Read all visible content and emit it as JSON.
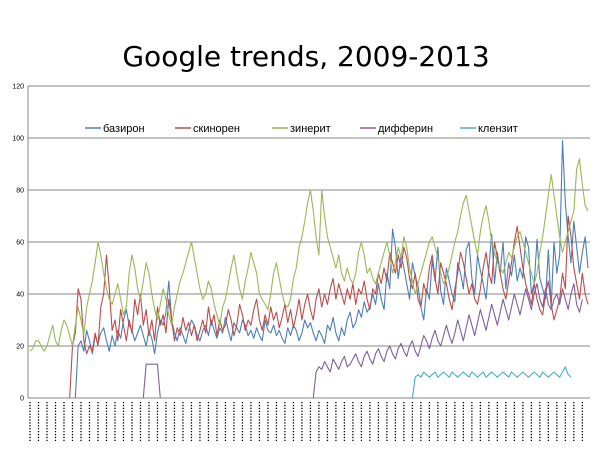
{
  "chart_data": {
    "type": "line",
    "title": "Google trends, 2009-2013",
    "xlabel": "",
    "ylabel": "",
    "ylim": [
      0,
      120
    ],
    "yticks": [
      "0",
      "20",
      "40",
      "60",
      "80",
      "100",
      "120"
    ],
    "grid": true,
    "legend_position": "top",
    "series": [
      {
        "name": "базирон",
        "color": "#4A7EBB",
        "values": [
          0,
          0,
          0,
          0,
          0,
          0,
          0,
          0,
          0,
          0,
          0,
          0,
          0,
          0,
          0,
          0,
          0,
          20,
          22,
          18,
          26,
          22,
          17,
          24,
          21,
          25,
          27,
          22,
          18,
          24,
          20,
          26,
          23,
          30,
          34,
          28,
          26,
          22,
          25,
          28,
          24,
          20,
          26,
          23,
          17,
          25,
          30,
          28,
          33,
          45,
          30,
          25,
          22,
          27,
          24,
          21,
          26,
          30,
          28,
          24,
          22,
          26,
          28,
          24,
          30,
          26,
          23,
          27,
          25,
          31,
          26,
          22,
          29,
          27,
          25,
          30,
          28,
          24,
          26,
          23,
          27,
          24,
          22,
          30,
          26,
          25,
          28,
          24,
          26,
          23,
          21,
          27,
          24,
          28,
          26,
          22,
          25,
          30,
          27,
          29,
          25,
          22,
          26,
          24,
          21,
          28,
          26,
          31,
          25,
          22,
          27,
          24,
          30,
          33,
          27,
          29,
          34,
          31,
          37,
          33,
          35,
          40,
          36,
          44,
          38,
          34,
          48,
          42,
          65,
          58,
          46,
          55,
          50,
          44,
          38,
          52,
          47,
          43,
          35,
          30,
          42,
          38,
          53,
          45,
          58,
          41,
          36,
          50,
          45,
          40,
          37,
          52,
          48,
          42,
          57,
          60,
          46,
          40,
          55,
          49,
          44,
          38,
          50,
          63,
          44,
          56,
          48,
          60,
          42,
          52,
          47,
          55,
          45,
          50,
          46,
          62,
          58,
          40,
          44,
          61,
          46,
          42,
          38,
          57,
          35,
          60,
          48,
          55,
          99,
          75,
          62,
          52,
          68,
          58,
          48,
          56,
          62,
          50
        ]
      },
      {
        "name": "скинорен",
        "color": "#BE4B48",
        "values": [
          0,
          0,
          0,
          0,
          0,
          0,
          0,
          0,
          0,
          0,
          0,
          0,
          0,
          0,
          0,
          20,
          25,
          42,
          38,
          22,
          17,
          20,
          18,
          25,
          20,
          35,
          40,
          55,
          42,
          26,
          30,
          22,
          34,
          28,
          22,
          30,
          25,
          38,
          32,
          40,
          28,
          34,
          24,
          30,
          22,
          35,
          28,
          32,
          25,
          38,
          30,
          22,
          27,
          24,
          31,
          26,
          29,
          24,
          28,
          22,
          26,
          30,
          25,
          35,
          28,
          32,
          24,
          30,
          26,
          28,
          34,
          30,
          24,
          28,
          36,
          32,
          26,
          30,
          28,
          34,
          38,
          30,
          26,
          32,
          28,
          35,
          30,
          33,
          27,
          31,
          36,
          29,
          34,
          27,
          32,
          38,
          30,
          36,
          40,
          34,
          30,
          38,
          42,
          35,
          40,
          36,
          42,
          46,
          38,
          44,
          40,
          36,
          42,
          38,
          44,
          36,
          42,
          40,
          45,
          38,
          34,
          42,
          40,
          48,
          44,
          50,
          45,
          56,
          52,
          48,
          55,
          50,
          58,
          54,
          46,
          42,
          48,
          38,
          35,
          44,
          40,
          50,
          55,
          46,
          40,
          52,
          48,
          44,
          38,
          34,
          42,
          48,
          56,
          52,
          46,
          40,
          44,
          38,
          36,
          42,
          50,
          56,
          48,
          44,
          60,
          54,
          48,
          42,
          38,
          45,
          52,
          60,
          66,
          58,
          50,
          44,
          40,
          36,
          44,
          38,
          34,
          32,
          40,
          45,
          36,
          30,
          34,
          38,
          48,
          42,
          70,
          62,
          50,
          44,
          38,
          48,
          40,
          36
        ]
      },
      {
        "name": "зинерит",
        "color": "#98B954",
        "values": [
          18,
          19,
          22,
          22,
          20,
          18,
          20,
          24,
          28,
          22,
          20,
          26,
          30,
          28,
          24,
          20,
          28,
          35,
          30,
          24,
          35,
          40,
          45,
          52,
          60,
          55,
          48,
          42,
          38,
          36,
          40,
          44,
          38,
          32,
          35,
          48,
          55,
          50,
          42,
          38,
          45,
          52,
          48,
          40,
          34,
          30,
          36,
          42,
          38,
          32,
          28,
          35,
          40,
          45,
          48,
          52,
          56,
          60,
          54,
          48,
          42,
          38,
          40,
          45,
          42,
          36,
          32,
          28,
          35,
          38,
          44,
          50,
          55,
          48,
          42,
          38,
          45,
          50,
          56,
          52,
          48,
          40,
          38,
          36,
          34,
          40,
          48,
          52,
          46,
          40,
          36,
          35,
          38,
          46,
          50,
          58,
          62,
          68,
          75,
          80,
          72,
          62,
          55,
          80,
          70,
          62,
          58,
          54,
          50,
          55,
          48,
          45,
          50,
          46,
          44,
          48,
          56,
          60,
          55,
          48,
          50,
          46,
          44,
          48,
          52,
          56,
          60,
          55,
          48,
          52,
          58,
          54,
          62,
          58,
          50,
          45,
          40,
          44,
          48,
          52,
          56,
          60,
          62,
          58,
          54,
          48,
          44,
          46,
          50,
          55,
          60,
          64,
          70,
          75,
          78,
          72,
          66,
          60,
          55,
          64,
          70,
          74,
          68,
          60,
          56,
          52,
          50,
          48,
          52,
          56,
          54,
          58,
          62,
          64,
          60,
          56,
          52,
          48,
          44,
          48,
          56,
          62,
          70,
          78,
          86,
          78,
          70,
          62,
          56,
          60,
          64,
          68,
          72,
          88,
          92,
          82,
          74,
          72
        ]
      },
      {
        "name": "дифферин",
        "color": "#7D60A0",
        "values": [
          0,
          0,
          0,
          0,
          0,
          0,
          0,
          0,
          0,
          0,
          0,
          0,
          0,
          0,
          0,
          0,
          0,
          0,
          0,
          0,
          0,
          0,
          0,
          0,
          0,
          0,
          0,
          0,
          0,
          0,
          0,
          0,
          0,
          0,
          0,
          0,
          0,
          0,
          0,
          0,
          0,
          13,
          13,
          13,
          13,
          13,
          0,
          0,
          0,
          0,
          0,
          0,
          0,
          0,
          0,
          0,
          0,
          0,
          0,
          0,
          0,
          0,
          0,
          0,
          0,
          0,
          0,
          0,
          0,
          0,
          0,
          0,
          0,
          0,
          0,
          0,
          0,
          0,
          0,
          0,
          0,
          0,
          0,
          0,
          0,
          0,
          0,
          0,
          0,
          0,
          0,
          0,
          0,
          0,
          0,
          0,
          0,
          0,
          0,
          0,
          0,
          10,
          12,
          11,
          14,
          12,
          10,
          15,
          13,
          11,
          14,
          16,
          12,
          13,
          15,
          17,
          14,
          12,
          16,
          18,
          15,
          13,
          17,
          19,
          16,
          14,
          18,
          20,
          17,
          15,
          19,
          21,
          18,
          16,
          20,
          22,
          18,
          16,
          20,
          24,
          22,
          19,
          23,
          26,
          22,
          20,
          24,
          28,
          24,
          21,
          25,
          30,
          26,
          22,
          27,
          32,
          28,
          24,
          29,
          34,
          30,
          26,
          31,
          36,
          32,
          28,
          33,
          38,
          34,
          30,
          35,
          40,
          36,
          32,
          37,
          42,
          38,
          34,
          40,
          44,
          38,
          35,
          42,
          36,
          34,
          38,
          40,
          36,
          42,
          38,
          34,
          40,
          44,
          36,
          33,
          38
        ]
      },
      {
        "name": "клензит",
        "color": "#4BACC6",
        "values": [
          0,
          0,
          0,
          0,
          0,
          0,
          0,
          0,
          0,
          0,
          0,
          0,
          0,
          0,
          0,
          0,
          0,
          0,
          0,
          0,
          0,
          0,
          0,
          0,
          0,
          0,
          0,
          0,
          0,
          0,
          0,
          0,
          0,
          0,
          0,
          0,
          0,
          0,
          0,
          0,
          0,
          0,
          0,
          0,
          0,
          0,
          0,
          0,
          0,
          0,
          0,
          0,
          0,
          0,
          0,
          0,
          0,
          0,
          0,
          0,
          0,
          0,
          0,
          0,
          0,
          0,
          0,
          0,
          0,
          0,
          0,
          0,
          0,
          0,
          0,
          0,
          0,
          0,
          0,
          0,
          0,
          0,
          0,
          0,
          0,
          0,
          0,
          0,
          0,
          0,
          0,
          0,
          0,
          0,
          0,
          0,
          0,
          0,
          0,
          0,
          0,
          0,
          0,
          0,
          0,
          0,
          0,
          0,
          0,
          0,
          0,
          0,
          0,
          0,
          0,
          0,
          0,
          0,
          0,
          0,
          0,
          0,
          0,
          0,
          0,
          0,
          0,
          0,
          0,
          0,
          0,
          0,
          0,
          0,
          0,
          0,
          8,
          9,
          8,
          10,
          9,
          8,
          9,
          10,
          8,
          9,
          10,
          9,
          8,
          10,
          9,
          8,
          9,
          10,
          9,
          8,
          10,
          9,
          8,
          9,
          10,
          8,
          9,
          10,
          9,
          8,
          9,
          10,
          9,
          8,
          10,
          9,
          8,
          9,
          10,
          9,
          8,
          9,
          10,
          9,
          8,
          10,
          9,
          8,
          9,
          10,
          9,
          8,
          10,
          12,
          9,
          8
        ]
      }
    ]
  }
}
